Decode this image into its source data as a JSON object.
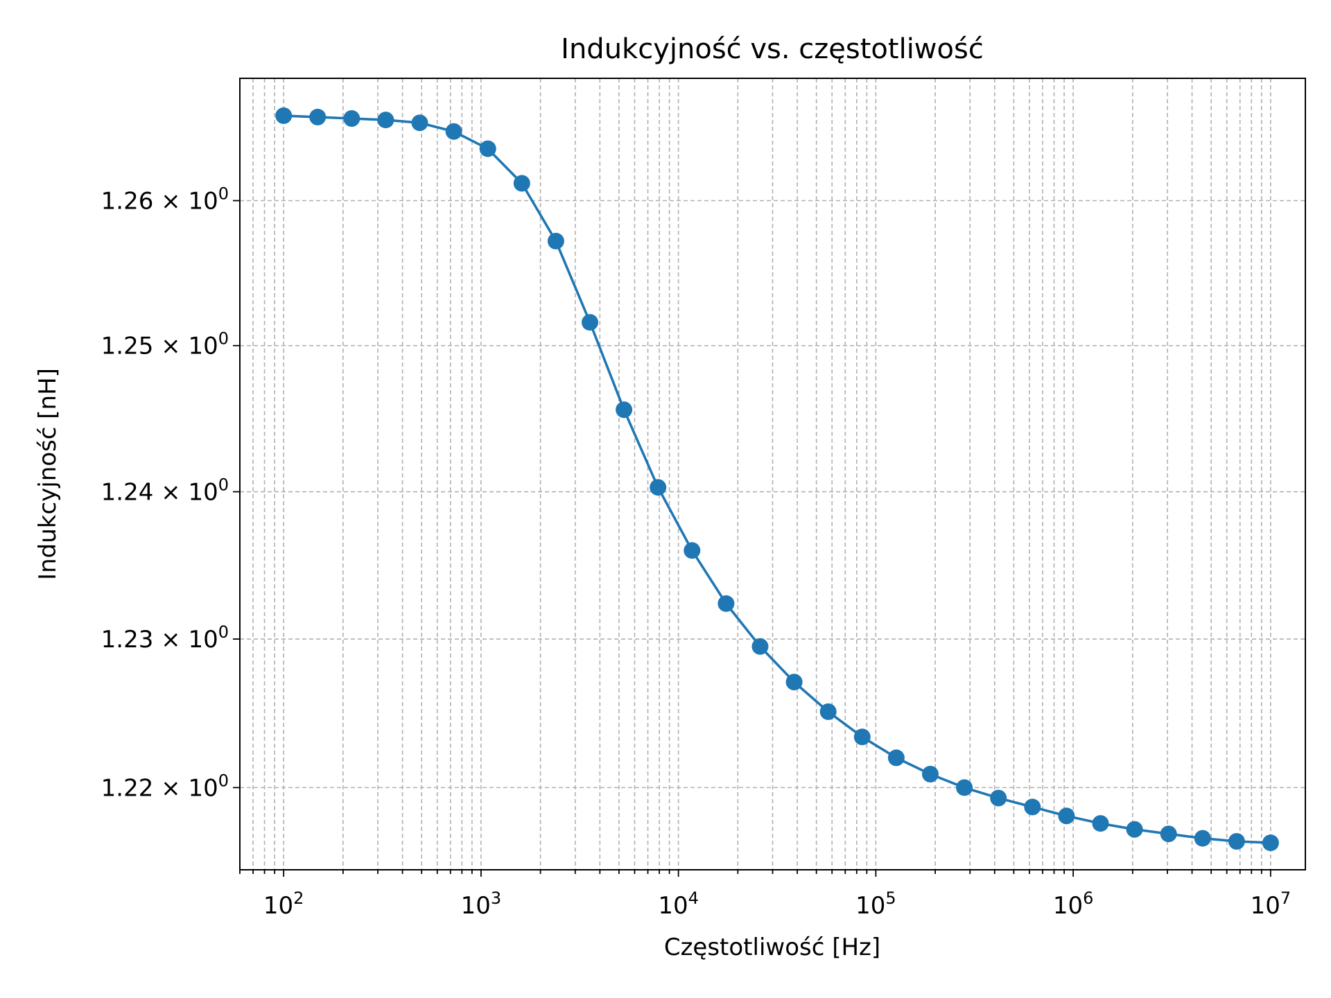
{
  "chart_data": {
    "type": "line",
    "title": "Indukcyjność vs. częstotliwość",
    "xlabel": "Częstotliwość [Hz]",
    "ylabel": "Indukcyjność [nH]",
    "x_scale": "log",
    "y_scale": "log",
    "xlim": [
      60,
      15000000
    ],
    "ylim": [
      1.2145,
      1.2685
    ],
    "grid": true,
    "grid_style": "dashed, major and minor",
    "x_ticks": [
      {
        "value": 100,
        "base": "10",
        "exp": "2"
      },
      {
        "value": 1000,
        "base": "10",
        "exp": "3"
      },
      {
        "value": 10000,
        "base": "10",
        "exp": "4"
      },
      {
        "value": 100000,
        "base": "10",
        "exp": "5"
      },
      {
        "value": 1000000,
        "base": "10",
        "exp": "6"
      },
      {
        "value": 10000000,
        "base": "10",
        "exp": "7"
      }
    ],
    "y_ticks": [
      {
        "value": 1.22,
        "mantissa": "1.22",
        "times": "×",
        "base": "10",
        "exp": "0"
      },
      {
        "value": 1.23,
        "mantissa": "1.23",
        "times": "×",
        "base": "10",
        "exp": "0"
      },
      {
        "value": 1.24,
        "mantissa": "1.24",
        "times": "×",
        "base": "10",
        "exp": "0"
      },
      {
        "value": 1.25,
        "mantissa": "1.25",
        "times": "×",
        "base": "10",
        "exp": "0"
      },
      {
        "value": 1.26,
        "mantissa": "1.26",
        "times": "×",
        "base": "10",
        "exp": "0"
      }
    ],
    "series": [
      {
        "color": "#1f77b4",
        "marker": "circle",
        "x": [
          100,
          148.7,
          221.2,
          329,
          489.4,
          727.9,
          1082.6,
          1610.3,
          2395.3,
          3562.8,
          5299.3,
          7882.5,
          11724.4,
          17439.4,
          25939.6,
          38582.4,
          57386.5,
          85358.0,
          126965.2,
          188852.6,
          280900.5,
          417814.2,
          621460.8,
          924362.7,
          1374890,
          2045013,
          3041869,
          4524555,
          6729800,
          10000000
        ],
        "y": [
          1.2659,
          1.2658,
          1.2657,
          1.2656,
          1.2654,
          1.2648,
          1.2636,
          1.2612,
          1.2572,
          1.2516,
          1.2456,
          1.2403,
          1.236,
          1.2324,
          1.2295,
          1.2271,
          1.2251,
          1.2234,
          1.222,
          1.2209,
          1.22,
          1.2193,
          1.2187,
          1.2181,
          1.2176,
          1.2172,
          1.2169,
          1.2166,
          1.2164,
          1.2163
        ]
      }
    ]
  }
}
